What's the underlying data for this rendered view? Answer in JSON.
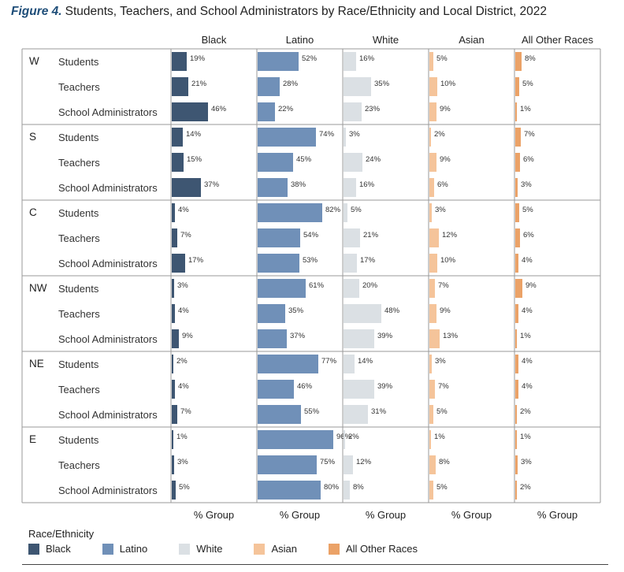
{
  "title": {
    "label": "Figure 4.",
    "text": "Students, Teachers, and School Administrators by Race/Ethnicity and Local District, 2022"
  },
  "chart_data": {
    "type": "bar",
    "orientation": "horizontal",
    "x_axis_label": "% Group",
    "x_range": [
      0,
      100
    ],
    "categories": [
      "Black",
      "Latino",
      "White",
      "Asian",
      "All Other Races"
    ],
    "colors": [
      "#3e5672",
      "#7090b8",
      "#dbe0e4",
      "#f5c49a",
      "#eba267"
    ],
    "districts": [
      {
        "name": "W",
        "rows": [
          {
            "label": "Students",
            "values": [
              19,
              52,
              16,
              5,
              8
            ]
          },
          {
            "label": "Teachers",
            "values": [
              21,
              28,
              35,
              10,
              5
            ]
          },
          {
            "label": "School Administrators",
            "values": [
              46,
              22,
              23,
              9,
              1
            ]
          }
        ]
      },
      {
        "name": "S",
        "rows": [
          {
            "label": "Students",
            "values": [
              14,
              74,
              3,
              2,
              7
            ]
          },
          {
            "label": "Teachers",
            "values": [
              15,
              45,
              24,
              9,
              6
            ]
          },
          {
            "label": "School Administrators",
            "values": [
              37,
              38,
              16,
              6,
              3
            ]
          }
        ]
      },
      {
        "name": "C",
        "rows": [
          {
            "label": "Students",
            "values": [
              4,
              82,
              5,
              3,
              5
            ]
          },
          {
            "label": "Teachers",
            "values": [
              7,
              54,
              21,
              12,
              6
            ]
          },
          {
            "label": "School Administrators",
            "values": [
              17,
              53,
              17,
              10,
              4
            ]
          }
        ]
      },
      {
        "name": "NW",
        "rows": [
          {
            "label": "Students",
            "values": [
              3,
              61,
              20,
              7,
              9
            ]
          },
          {
            "label": "Teachers",
            "values": [
              4,
              35,
              48,
              9,
              4
            ]
          },
          {
            "label": "School Administrators",
            "values": [
              9,
              37,
              39,
              13,
              1
            ]
          }
        ]
      },
      {
        "name": "NE",
        "rows": [
          {
            "label": "Students",
            "values": [
              2,
              77,
              14,
              3,
              4
            ]
          },
          {
            "label": "Teachers",
            "values": [
              4,
              46,
              39,
              7,
              4
            ]
          },
          {
            "label": "School Administrators",
            "values": [
              7,
              55,
              31,
              5,
              2
            ]
          }
        ]
      },
      {
        "name": "E",
        "rows": [
          {
            "label": "Students",
            "values": [
              1,
              96,
              2,
              1,
              1
            ]
          },
          {
            "label": "Teachers",
            "values": [
              3,
              75,
              12,
              8,
              3
            ]
          },
          {
            "label": "School Administrators",
            "values": [
              5,
              80,
              8,
              5,
              2
            ]
          }
        ]
      }
    ],
    "value_suffix": "%"
  },
  "legend": {
    "title": "Race/Ethnicity",
    "items": [
      {
        "label": "Black",
        "color": "#3e5672"
      },
      {
        "label": "Latino",
        "color": "#7090b8"
      },
      {
        "label": "White",
        "color": "#dbe0e4"
      },
      {
        "label": "Asian",
        "color": "#f5c49a"
      },
      {
        "label": "All Other Races",
        "color": "#eba267"
      }
    ]
  }
}
